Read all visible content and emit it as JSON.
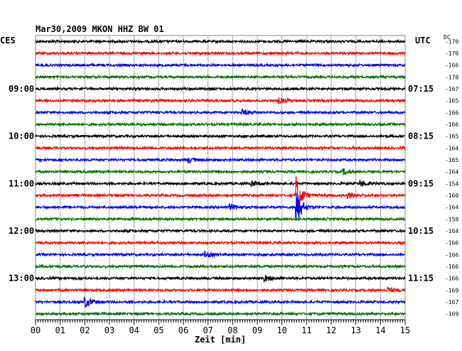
{
  "chart_data": {
    "type": "line",
    "title": "Mar30,2009  MKON HHZ BW 01",
    "left_axis_title": "CES",
    "right_axis_title": "UTC",
    "dc_label": "DC",
    "xlabel": "Zeit [min]",
    "xlim": [
      0,
      15
    ],
    "x_ticks": [
      "00",
      "01",
      "02",
      "03",
      "04",
      "05",
      "06",
      "07",
      "08",
      "09",
      "10",
      "11",
      "12",
      "13",
      "14",
      "15"
    ],
    "left_time_labels": [
      {
        "row": 4,
        "text": "09:00"
      },
      {
        "row": 8,
        "text": "10:00"
      },
      {
        "row": 12,
        "text": "11:00"
      },
      {
        "row": 16,
        "text": "12:00"
      },
      {
        "row": 20,
        "text": "13:00"
      }
    ],
    "right_time_labels": [
      {
        "row": 4,
        "text": "07:15"
      },
      {
        "row": 8,
        "text": "08:15"
      },
      {
        "row": 12,
        "text": "09:15"
      },
      {
        "row": 16,
        "text": "10:15"
      },
      {
        "row": 20,
        "text": "11:15"
      }
    ],
    "trace_colors": [
      "#000000",
      "#ff0000",
      "#0000ff",
      "#007000"
    ],
    "dc_offsets": [
      -170,
      -170,
      -166,
      -170,
      -167,
      -165,
      -166,
      -166,
      -165,
      -164,
      -165,
      -164,
      -154,
      -160,
      -164,
      -158,
      -164,
      -166,
      -166,
      -166,
      -166,
      -169,
      -167,
      -169
    ],
    "events": [
      {
        "row": 13,
        "minute": 10.6,
        "amplitude": "large"
      },
      {
        "row": 14,
        "minute": 10.6,
        "amplitude": "large"
      },
      {
        "row": 22,
        "minute": 2.0,
        "amplitude": "medium"
      },
      {
        "row": 5,
        "minute": 9.9,
        "amplitude": "small"
      },
      {
        "row": 6,
        "minute": 8.4,
        "amplitude": "small"
      },
      {
        "row": 10,
        "minute": 6.2,
        "amplitude": "small"
      },
      {
        "row": 12,
        "minute": 8.8,
        "amplitude": "small"
      },
      {
        "row": 12,
        "minute": 13.2,
        "amplitude": "small"
      },
      {
        "row": 13,
        "minute": 12.7,
        "amplitude": "small"
      },
      {
        "row": 14,
        "minute": 7.9,
        "amplitude": "small"
      },
      {
        "row": 18,
        "minute": 6.9,
        "amplitude": "small"
      },
      {
        "row": 20,
        "minute": 9.3,
        "amplitude": "small"
      },
      {
        "row": 21,
        "minute": 14.3,
        "amplitude": "small"
      },
      {
        "row": 11,
        "minute": 12.5,
        "amplitude": "small"
      }
    ],
    "grid": true
  }
}
